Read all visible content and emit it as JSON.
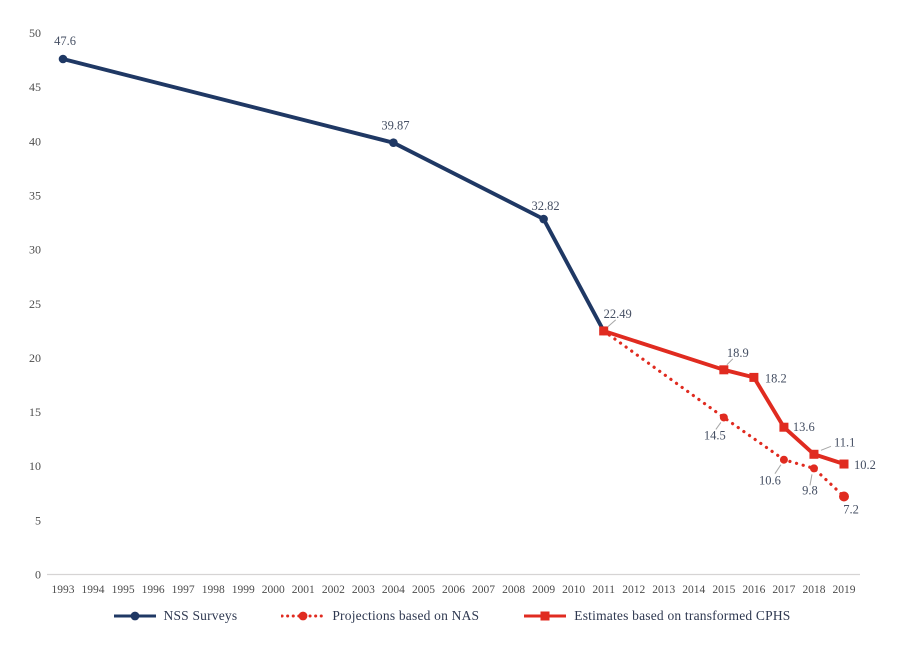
{
  "chart_data": {
    "type": "line",
    "title": "",
    "xlabel": "",
    "ylabel": "",
    "x_years": [
      1993,
      1994,
      1995,
      1996,
      1997,
      1998,
      1999,
      2000,
      2001,
      2002,
      2003,
      2004,
      2005,
      2006,
      2007,
      2008,
      2009,
      2010,
      2011,
      2012,
      2013,
      2014,
      2015,
      2016,
      2017,
      2018,
      2019
    ],
    "yticks": [
      0,
      5,
      10,
      15,
      20,
      25,
      30,
      35,
      40,
      45,
      50
    ],
    "ylim": [
      0,
      50
    ],
    "grid": false,
    "legend_position": "bottom",
    "colors": {
      "navy": "#1F3864",
      "red": "#E02B20",
      "axis_text": "#4d4d4d",
      "axis_line": "#D6D4D4",
      "label_text": "#454F63",
      "leader": "#A6A6A6"
    },
    "series": [
      {
        "name": "NSS Surveys",
        "style": "solid",
        "marker": "circle",
        "color": "#1F3864",
        "points": [
          {
            "year": 1993,
            "value": 47.6,
            "label": "47.6"
          },
          {
            "year": 2004,
            "value": 39.87,
            "label": "39.87"
          },
          {
            "year": 2009,
            "value": 32.82,
            "label": "32.82"
          },
          {
            "year": 2011,
            "value": 22.49
          }
        ]
      },
      {
        "name": "Projections based on NAS",
        "style": "dotted",
        "marker": "circle",
        "color": "#E02B20",
        "points": [
          {
            "year": 2011,
            "value": 22.49
          },
          {
            "year": 2015,
            "value": 14.5,
            "label": "14.5"
          },
          {
            "year": 2017,
            "value": 10.6,
            "label": "10.6"
          },
          {
            "year": 2018,
            "value": 9.8,
            "label": "9.8"
          },
          {
            "year": 2019,
            "value": 7.2,
            "label": "7.2"
          }
        ]
      },
      {
        "name": "Estimates based on transformed CPHS",
        "style": "solid",
        "marker": "square",
        "color": "#E02B20",
        "points": [
          {
            "year": 2011,
            "value": 22.49,
            "label": "22.49"
          },
          {
            "year": 2015,
            "value": 18.9,
            "label": "18.9"
          },
          {
            "year": 2016,
            "value": 18.2,
            "label": "18.2"
          },
          {
            "year": 2017,
            "value": 13.6,
            "label": "13.6"
          },
          {
            "year": 2018,
            "value": 11.1,
            "label": "11.1"
          },
          {
            "year": 2019,
            "value": 10.2,
            "label": "10.2"
          }
        ]
      }
    ]
  }
}
